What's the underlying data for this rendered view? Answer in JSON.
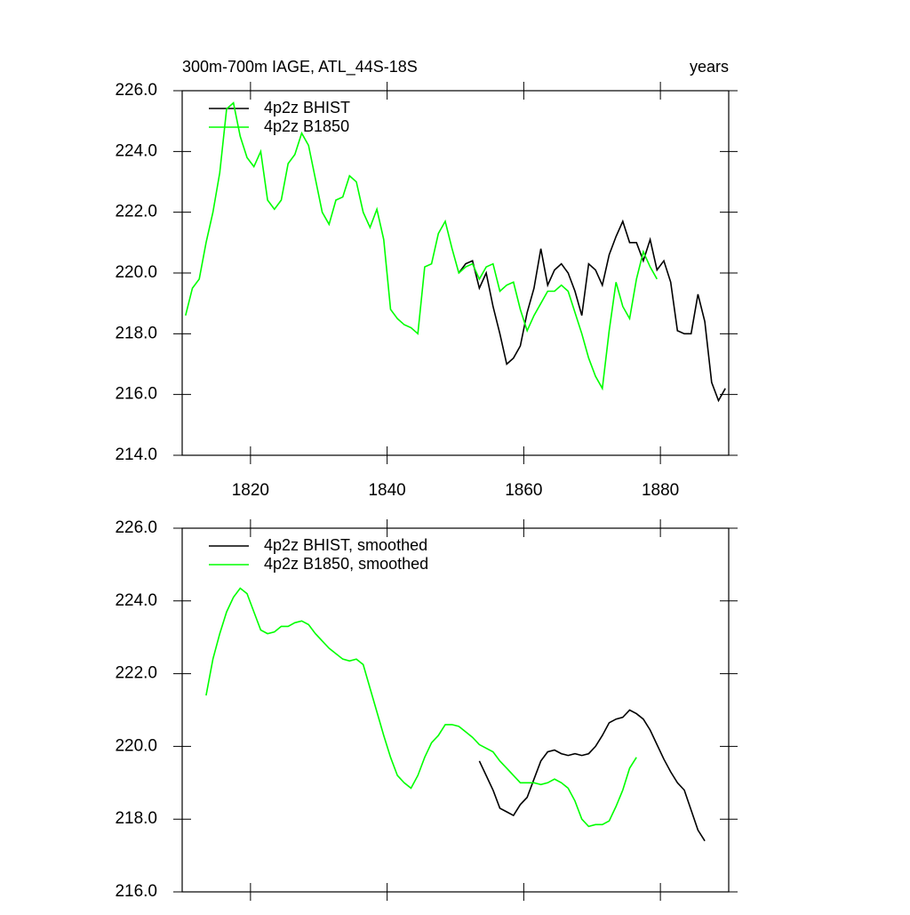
{
  "chart_data": [
    {
      "type": "line",
      "title": "300m-700m IAGE, ATL_44S-18S",
      "right_title": "years",
      "xlim": [
        1810,
        1890
      ],
      "xticks": [
        1820,
        1840,
        1860,
        1880
      ],
      "show_xtick_labels": true,
      "ylim": [
        214,
        226
      ],
      "yticks": [
        {
          "value": 214,
          "label": "214.0"
        },
        {
          "value": 216,
          "label": "216.0"
        },
        {
          "value": 218,
          "label": "218.0"
        },
        {
          "value": 220,
          "label": "220.0"
        },
        {
          "value": 222,
          "label": "222.0"
        },
        {
          "value": 224,
          "label": "224.0"
        },
        {
          "value": 226,
          "label": "226.0"
        }
      ],
      "series": [
        {
          "name": "4p2z BHIST",
          "color": "#000000",
          "x": [
            1850.5,
            1851.5,
            1852.5,
            1853.5,
            1854.5,
            1855.5,
            1856.5,
            1857.5,
            1858.5,
            1859.5,
            1860.5,
            1861.5,
            1862.5,
            1863.5,
            1864.5,
            1865.5,
            1866.5,
            1867.5,
            1868.5,
            1869.5,
            1870.5,
            1871.5,
            1872.5,
            1873.5,
            1874.5,
            1875.5,
            1876.5,
            1877.5,
            1878.5,
            1879.5,
            1880.5,
            1881.5,
            1882.5,
            1883.5,
            1884.5,
            1885.5,
            1886.5,
            1887.5,
            1888.5,
            1889.5
          ],
          "values": [
            220.0,
            220.3,
            220.4,
            219.5,
            220.0,
            218.9,
            218.0,
            217.0,
            217.2,
            217.6,
            218.7,
            219.5,
            220.8,
            219.6,
            220.1,
            220.3,
            220.0,
            219.4,
            218.6,
            220.3,
            220.1,
            219.6,
            220.6,
            221.2,
            221.7,
            221.0,
            221.0,
            220.4,
            221.1,
            220.1,
            220.4,
            219.7,
            218.1,
            218.0,
            218.0,
            219.3,
            218.4,
            216.4,
            215.8,
            216.2
          ]
        },
        {
          "name": "4p2z B1850",
          "color": "#00ff00",
          "x": [
            1810.5,
            1811.5,
            1812.5,
            1813.5,
            1814.5,
            1815.5,
            1816.5,
            1817.5,
            1818.5,
            1819.5,
            1820.5,
            1821.5,
            1822.5,
            1823.5,
            1824.5,
            1825.5,
            1826.5,
            1827.5,
            1828.5,
            1829.5,
            1830.5,
            1831.5,
            1832.5,
            1833.5,
            1834.5,
            1835.5,
            1836.5,
            1837.5,
            1838.5,
            1839.5,
            1840.5,
            1841.5,
            1842.5,
            1843.5,
            1844.5,
            1845.5,
            1846.5,
            1847.5,
            1848.5,
            1849.5,
            1850.5,
            1851.5,
            1852.5,
            1853.5,
            1854.5,
            1855.5,
            1856.5,
            1857.5,
            1858.5,
            1859.5,
            1860.5,
            1861.5,
            1862.5,
            1863.5,
            1864.5,
            1865.5,
            1866.5,
            1867.5,
            1868.5,
            1869.5,
            1870.5,
            1871.5,
            1872.5,
            1873.5,
            1874.5,
            1875.5,
            1876.5,
            1877.5,
            1878.5,
            1879.5
          ],
          "values": [
            218.6,
            219.5,
            219.8,
            221.0,
            222.0,
            223.3,
            225.4,
            225.6,
            224.5,
            223.8,
            223.5,
            224.0,
            222.4,
            222.1,
            222.4,
            223.6,
            223.9,
            224.6,
            224.2,
            223.1,
            222.0,
            221.6,
            222.4,
            222.5,
            223.2,
            223.0,
            222.0,
            221.5,
            222.1,
            221.1,
            218.8,
            218.5,
            218.3,
            218.2,
            218.0,
            220.2,
            220.3,
            221.3,
            221.7,
            220.8,
            220.0,
            220.2,
            220.3,
            219.8,
            220.2,
            220.3,
            219.4,
            219.6,
            219.7,
            218.8,
            218.1,
            218.6,
            219.0,
            219.4,
            219.4,
            219.6,
            219.4,
            218.7,
            218.0,
            217.2,
            216.6,
            216.2,
            218.1,
            219.7,
            218.9,
            218.5,
            219.8,
            220.7,
            220.2,
            219.8
          ]
        }
      ]
    },
    {
      "type": "line",
      "xlim": [
        1810,
        1890
      ],
      "xticks": [
        1820,
        1840,
        1860,
        1880
      ],
      "show_xtick_labels": false,
      "ylim": [
        216,
        226
      ],
      "yticks": [
        {
          "value": 216,
          "label": "216.0"
        },
        {
          "value": 218,
          "label": "218.0"
        },
        {
          "value": 220,
          "label": "220.0"
        },
        {
          "value": 222,
          "label": "222.0"
        },
        {
          "value": 224,
          "label": "224.0"
        },
        {
          "value": 226,
          "label": "226.0"
        }
      ],
      "series": [
        {
          "name": "4p2z BHIST, smoothed",
          "color": "#000000",
          "x": [
            1853.5,
            1854.5,
            1855.5,
            1856.5,
            1857.5,
            1858.5,
            1859.5,
            1860.5,
            1861.5,
            1862.5,
            1863.5,
            1864.5,
            1865.5,
            1866.5,
            1867.5,
            1868.5,
            1869.5,
            1870.5,
            1871.5,
            1872.5,
            1873.5,
            1874.5,
            1875.5,
            1876.5,
            1877.5,
            1878.5,
            1879.5,
            1880.5,
            1881.5,
            1882.5,
            1883.5,
            1884.5,
            1885.5,
            1886.5
          ],
          "values": [
            219.6,
            219.2,
            218.8,
            218.3,
            218.2,
            218.1,
            218.4,
            218.6,
            219.1,
            219.6,
            219.85,
            219.9,
            219.8,
            219.75,
            219.8,
            219.75,
            219.8,
            220.0,
            220.3,
            220.65,
            220.75,
            220.8,
            221.0,
            220.9,
            220.75,
            220.45,
            220.05,
            219.65,
            219.3,
            219.0,
            218.8,
            218.25,
            217.7,
            217.4
          ]
        },
        {
          "name": "4p2z B1850, smoothed",
          "color": "#00ff00",
          "x": [
            1813.5,
            1814.5,
            1815.5,
            1816.5,
            1817.5,
            1818.5,
            1819.5,
            1820.5,
            1821.5,
            1822.5,
            1823.5,
            1824.5,
            1825.5,
            1826.5,
            1827.5,
            1828.5,
            1829.5,
            1830.5,
            1831.5,
            1832.5,
            1833.5,
            1834.5,
            1835.5,
            1836.5,
            1837.5,
            1838.5,
            1839.5,
            1840.5,
            1841.5,
            1842.5,
            1843.5,
            1844.5,
            1845.5,
            1846.5,
            1847.5,
            1848.5,
            1849.5,
            1850.5,
            1851.5,
            1852.5,
            1853.5,
            1854.5,
            1855.5,
            1856.5,
            1857.5,
            1858.5,
            1859.5,
            1860.5,
            1861.5,
            1862.5,
            1863.5,
            1864.5,
            1865.5,
            1866.5,
            1867.5,
            1868.5,
            1869.5,
            1870.5,
            1871.5,
            1872.5,
            1873.5,
            1874.5,
            1875.5,
            1876.5
          ],
          "values": [
            221.4,
            222.4,
            223.1,
            223.7,
            224.1,
            224.35,
            224.2,
            223.7,
            223.2,
            223.1,
            223.15,
            223.3,
            223.3,
            223.4,
            223.45,
            223.35,
            223.1,
            222.9,
            222.7,
            222.55,
            222.4,
            222.35,
            222.4,
            222.25,
            221.6,
            220.95,
            220.3,
            219.7,
            219.2,
            219.0,
            218.85,
            219.2,
            219.7,
            220.1,
            220.3,
            220.6,
            220.6,
            220.55,
            220.4,
            220.25,
            220.05,
            219.95,
            219.85,
            219.6,
            219.4,
            219.2,
            219.0,
            219.0,
            219.0,
            218.95,
            219.0,
            219.1,
            219.0,
            218.85,
            218.5,
            218.0,
            217.8,
            217.85,
            217.85,
            217.95,
            218.35,
            218.8,
            219.4,
            219.7
          ]
        }
      ]
    }
  ]
}
